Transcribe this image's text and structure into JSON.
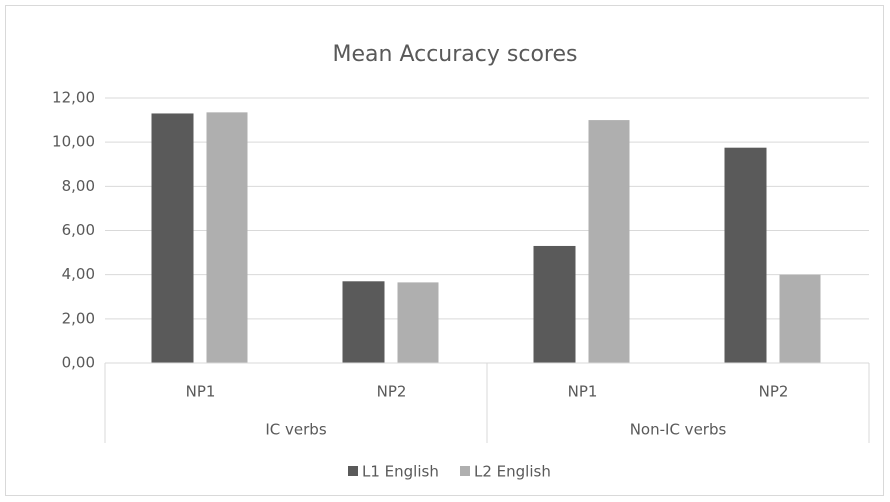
{
  "chart_data": {
    "type": "bar",
    "title": "Mean Accuracy scores",
    "groups": [
      {
        "name": "IC verbs",
        "categories": [
          "NP1",
          "NP2"
        ]
      },
      {
        "name": "Non-IC verbs",
        "categories": [
          "NP1",
          "NP2"
        ]
      }
    ],
    "series": [
      {
        "name": "L1 English",
        "color": "#5a5a5a",
        "values": [
          11.3,
          3.7,
          5.3,
          9.75
        ]
      },
      {
        "name": "L2 English",
        "color": "#afafaf",
        "values": [
          11.35,
          3.65,
          11.0,
          4.0
        ]
      }
    ],
    "ylim": [
      0,
      12
    ],
    "yticks": [
      {
        "value": 0,
        "label": "0,00"
      },
      {
        "value": 2,
        "label": "2,00"
      },
      {
        "value": 4,
        "label": "4,00"
      },
      {
        "value": 6,
        "label": "6,00"
      },
      {
        "value": 8,
        "label": "8,00"
      },
      {
        "value": 10,
        "label": "10,00"
      },
      {
        "value": 12,
        "label": "12,00"
      }
    ],
    "grid": true,
    "legend": "bottom"
  }
}
